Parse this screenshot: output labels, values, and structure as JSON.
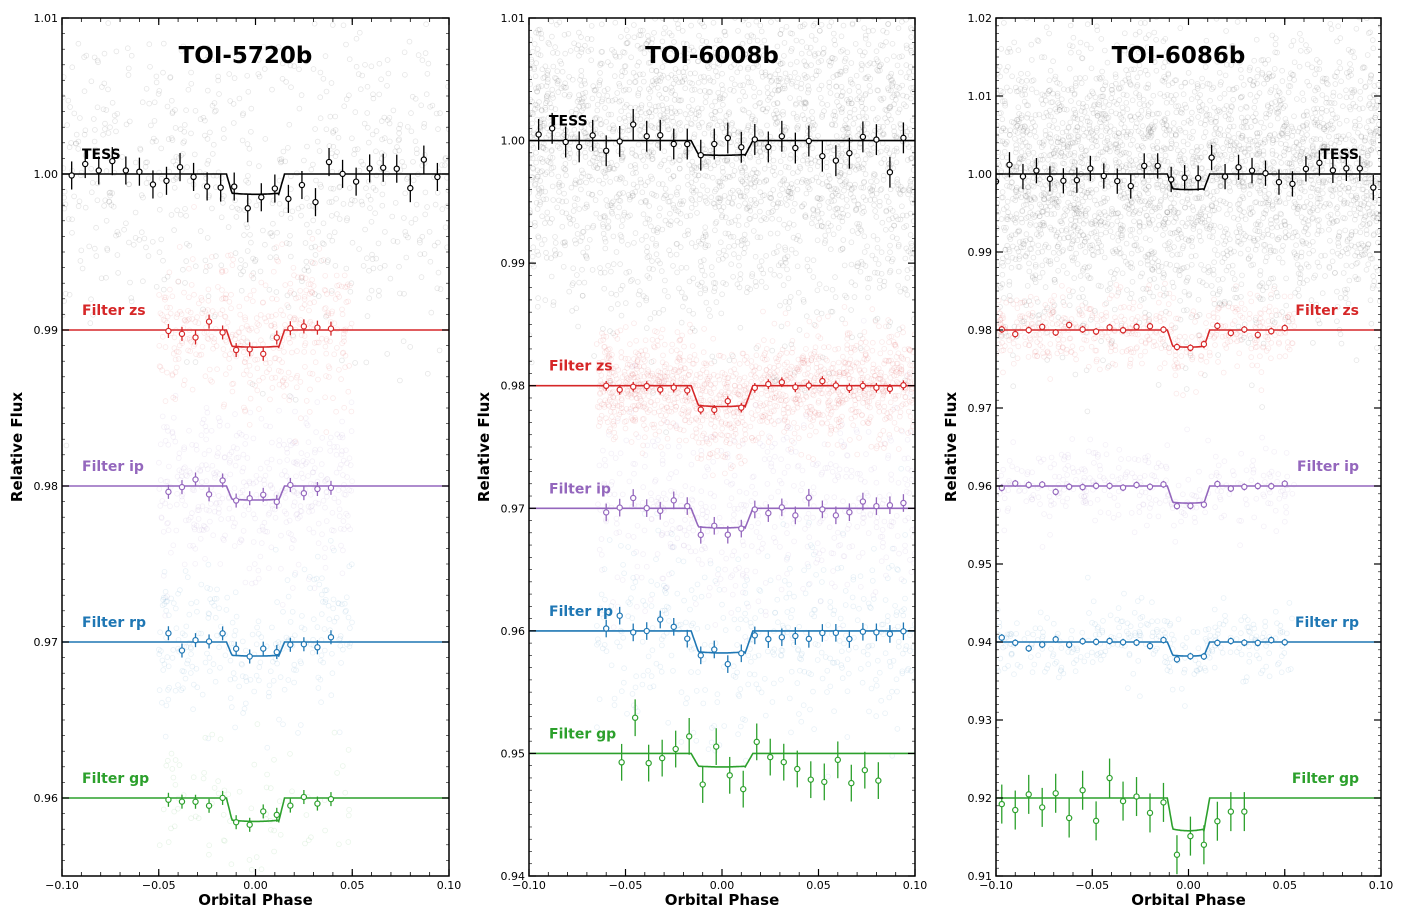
{
  "chart_data": [
    {
      "type": "scatter",
      "title": "TOI-5720b",
      "xlabel": "Orbital Phase",
      "ylabel": "Relative Flux",
      "xlim": [
        -0.1,
        0.1
      ],
      "ylim": [
        0.955,
        1.01
      ],
      "xticks": [
        "−0.10",
        "−0.05",
        "0.00",
        "0.05",
        "0.10"
      ],
      "yticks": [
        "0.96",
        "0.97",
        "0.98",
        "0.99",
        "1.00",
        "1.01"
      ],
      "transit": {
        "center": 0.0,
        "half_width": 0.015,
        "ingress": 0.003
      },
      "label_side": "left",
      "series": [
        {
          "name": "TESS",
          "color": "#000000",
          "baseline": 1.0,
          "depth": 0.0013,
          "binned_range": [
            -0.095,
            0.095
          ],
          "raw_range": [
            -0.1,
            0.1
          ],
          "scatter": 0.005,
          "raw_count": 700
        },
        {
          "name": "Filter zs",
          "color": "#d62728",
          "baseline": 0.99,
          "depth": 0.0011,
          "binned_range": [
            -0.045,
            0.045
          ],
          "raw_range": [
            -0.05,
            0.05
          ],
          "scatter": 0.0025,
          "raw_count": 420
        },
        {
          "name": "Filter ip",
          "color": "#9467bd",
          "baseline": 0.98,
          "depth": 0.0009,
          "binned_range": [
            -0.045,
            0.045
          ],
          "raw_range": [
            -0.05,
            0.05
          ],
          "scatter": 0.0025,
          "raw_count": 420
        },
        {
          "name": "Filter rp",
          "color": "#1f77b4",
          "baseline": 0.97,
          "depth": 0.0009,
          "binned_range": [
            -0.045,
            0.045
          ],
          "raw_range": [
            -0.05,
            0.05
          ],
          "scatter": 0.0025,
          "raw_count": 260
        },
        {
          "name": "Filter gp",
          "color": "#2ca02c",
          "baseline": 0.96,
          "depth": 0.0015,
          "binned_range": [
            -0.045,
            0.045
          ],
          "raw_range": [
            -0.05,
            0.05
          ],
          "scatter": 0.0025,
          "raw_count": 80
        }
      ]
    },
    {
      "type": "scatter",
      "title": "TOI-6008b",
      "xlabel": "Orbital Phase",
      "ylabel": "Relative Flux",
      "xlim": [
        -0.1,
        0.1
      ],
      "ylim": [
        0.94,
        1.01
      ],
      "xticks": [
        "−0.10",
        "−0.05",
        "0.00",
        "0.05",
        "0.10"
      ],
      "yticks": [
        "0.94",
        "0.95",
        "0.96",
        "0.97",
        "0.98",
        "0.99",
        "1.00",
        "1.01"
      ],
      "transit": {
        "center": 0.0,
        "half_width": 0.016,
        "ingress": 0.004
      },
      "label_side": "left",
      "series": [
        {
          "name": "TESS",
          "color": "#000000",
          "baseline": 1.0,
          "depth": 0.0012,
          "binned_range": [
            -0.095,
            0.095
          ],
          "raw_range": [
            -0.1,
            0.1
          ],
          "scatter": 0.007,
          "raw_count": 2600
        },
        {
          "name": "Filter zs",
          "color": "#d62728",
          "baseline": 0.98,
          "depth": 0.0017,
          "binned_range": [
            -0.06,
            0.095
          ],
          "raw_range": [
            -0.065,
            0.1
          ],
          "scatter": 0.0022,
          "raw_count": 1300
        },
        {
          "name": "Filter ip",
          "color": "#9467bd",
          "baseline": 0.97,
          "depth": 0.0016,
          "binned_range": [
            -0.06,
            0.095
          ],
          "raw_range": [
            -0.065,
            0.1
          ],
          "scatter": 0.004,
          "raw_count": 500
        },
        {
          "name": "Filter rp",
          "color": "#1f77b4",
          "baseline": 0.96,
          "depth": 0.0018,
          "binned_range": [
            -0.06,
            0.095
          ],
          "raw_range": [
            -0.065,
            0.1
          ],
          "scatter": 0.004,
          "raw_count": 400
        },
        {
          "name": "Filter gp",
          "color": "#2ca02c",
          "baseline": 0.95,
          "depth": 0.0011,
          "binned_range": [
            -0.052,
            0.082
          ],
          "raw_range": [
            -0.055,
            0.085
          ],
          "scatter": 0.0,
          "raw_count": 0,
          "errbar": 0.0015
        }
      ]
    },
    {
      "type": "scatter",
      "title": "TOI-6086b",
      "xlabel": "Orbital Phase",
      "ylabel": "Relative Flux",
      "xlim": [
        -0.1,
        0.1
      ],
      "ylim": [
        0.91,
        1.02
      ],
      "xticks": [
        "−0.10",
        "−0.05",
        "0.00",
        "0.05",
        "0.10"
      ],
      "yticks": [
        "0.91",
        "0.92",
        "0.93",
        "0.94",
        "0.95",
        "0.96",
        "0.97",
        "0.98",
        "0.99",
        "1.00",
        "1.01",
        "1.02"
      ],
      "transit": {
        "center": 0.0,
        "half_width": 0.011,
        "ingress": 0.003
      },
      "label_side": "right",
      "series": [
        {
          "name": "TESS",
          "color": "#000000",
          "baseline": 1.0,
          "depth": 0.002,
          "binned_range": [
            -0.1,
            0.1
          ],
          "raw_range": [
            -0.1,
            0.1
          ],
          "scatter": 0.009,
          "raw_count": 3000
        },
        {
          "name": "Filter zs",
          "color": "#d62728",
          "baseline": 0.98,
          "depth": 0.0022,
          "binned_range": [
            -0.097,
            0.053
          ],
          "raw_range": [
            -0.1,
            0.055
          ],
          "scatter": 0.0025,
          "raw_count": 500
        },
        {
          "name": "Filter ip",
          "color": "#9467bd",
          "baseline": 0.96,
          "depth": 0.0022,
          "binned_range": [
            -0.097,
            0.053
          ],
          "raw_range": [
            -0.1,
            0.055
          ],
          "scatter": 0.0025,
          "raw_count": 300
        },
        {
          "name": "Filter rp",
          "color": "#1f77b4",
          "baseline": 0.94,
          "depth": 0.0018,
          "binned_range": [
            -0.097,
            0.053
          ],
          "raw_range": [
            -0.1,
            0.055
          ],
          "scatter": 0.0025,
          "raw_count": 300
        },
        {
          "name": "Filter gp",
          "color": "#2ca02c",
          "baseline": 0.92,
          "depth": 0.0042,
          "binned_range": [
            -0.097,
            0.031
          ],
          "raw_range": [
            -0.1,
            0.035
          ],
          "scatter": 0.0,
          "raw_count": 0,
          "errbar": 0.0025
        }
      ]
    }
  ]
}
